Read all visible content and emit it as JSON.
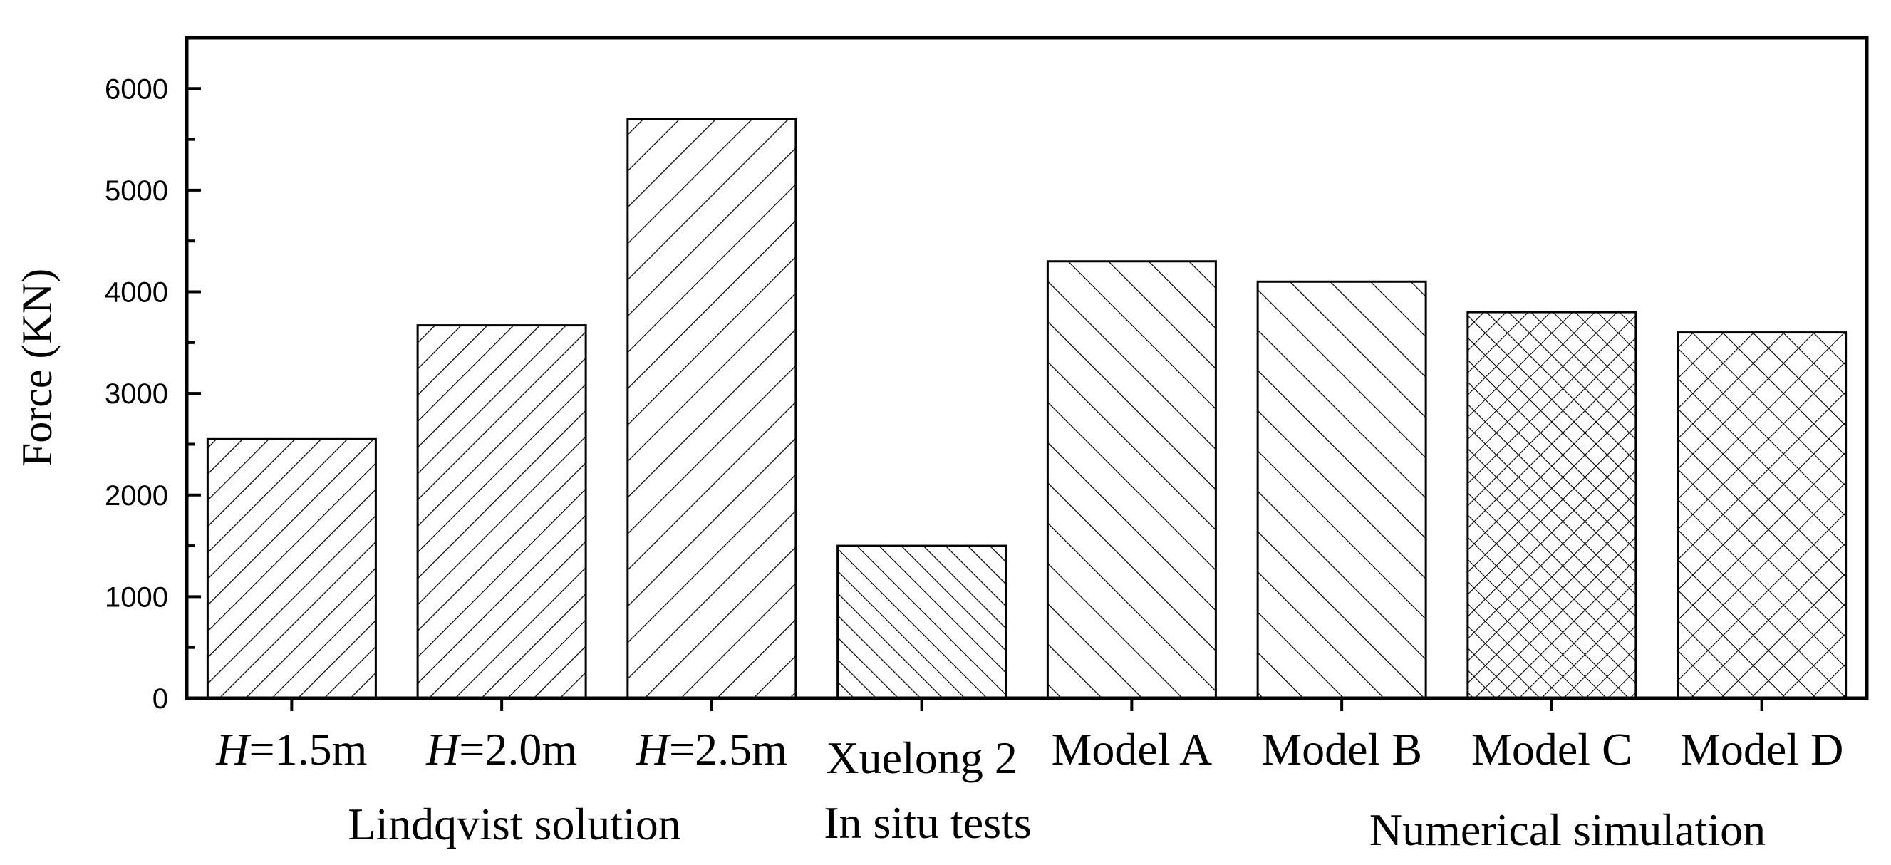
{
  "chart_data": {
    "type": "bar",
    "title": "",
    "ylabel": "Force (KN)",
    "xlabel": "",
    "ylim": [
      0,
      6500
    ],
    "yticks": [
      0,
      1000,
      2000,
      3000,
      4000,
      5000,
      6000
    ],
    "grid": false,
    "legend": "none",
    "bars": [
      {
        "label_prefix": "H",
        "label_suffix": "=1.5m",
        "value": 2550,
        "pattern": "diag-up"
      },
      {
        "label_prefix": "H",
        "label_suffix": "=2.0m",
        "value": 3670,
        "pattern": "diag-up"
      },
      {
        "label_prefix": "H",
        "label_suffix": "=2.5m",
        "value": 5700,
        "pattern": "diag-up-wide"
      },
      {
        "label_prefix": "",
        "label_suffix": "Xuelong 2",
        "value": 1500,
        "pattern": "diag-down"
      },
      {
        "label_prefix": "",
        "label_suffix": "Model A",
        "value": 4300,
        "pattern": "diag-down-wide"
      },
      {
        "label_prefix": "",
        "label_suffix": "Model B",
        "value": 4100,
        "pattern": "diag-down-wide"
      },
      {
        "label_prefix": "",
        "label_suffix": "Model C",
        "value": 3800,
        "pattern": "cross"
      },
      {
        "label_prefix": "",
        "label_suffix": "Model D",
        "value": 3600,
        "pattern": "cross-wide"
      }
    ],
    "groups": [
      {
        "label": "Lindqvist solution"
      },
      {
        "label": "In situ tests"
      },
      {
        "label": "Numerical simulation"
      }
    ],
    "colors": {
      "stroke": "#000000",
      "fill": "#ffffff"
    }
  }
}
